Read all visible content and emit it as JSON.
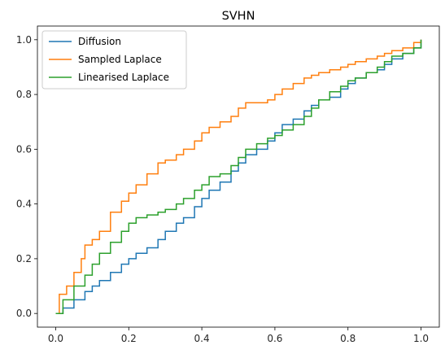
{
  "chart_data": {
    "type": "line",
    "title": "SVHN",
    "xlabel": "",
    "ylabel": "",
    "xlim": [
      -0.05,
      1.05
    ],
    "ylim": [
      -0.05,
      1.05
    ],
    "x_ticks": [
      "0.0",
      "0.2",
      "0.4",
      "0.6",
      "0.8",
      "1.0"
    ],
    "y_ticks": [
      "0.0",
      "0.2",
      "0.4",
      "0.6",
      "0.8",
      "1.0"
    ],
    "grid": false,
    "legend_position": "top-left",
    "series": [
      {
        "name": "Diffusion",
        "color": "#1f77b4",
        "step": true,
        "x": [
          0.0,
          0.02,
          0.05,
          0.08,
          0.1,
          0.12,
          0.15,
          0.18,
          0.2,
          0.22,
          0.25,
          0.28,
          0.3,
          0.33,
          0.35,
          0.38,
          0.4,
          0.42,
          0.45,
          0.48,
          0.5,
          0.52,
          0.55,
          0.58,
          0.6,
          0.62,
          0.65,
          0.68,
          0.7,
          0.72,
          0.75,
          0.78,
          0.8,
          0.82,
          0.85,
          0.88,
          0.9,
          0.92,
          0.95,
          0.98,
          1.0
        ],
        "y": [
          0.0,
          0.02,
          0.05,
          0.08,
          0.1,
          0.12,
          0.15,
          0.18,
          0.2,
          0.22,
          0.24,
          0.27,
          0.3,
          0.33,
          0.35,
          0.39,
          0.42,
          0.45,
          0.48,
          0.52,
          0.55,
          0.58,
          0.6,
          0.63,
          0.66,
          0.69,
          0.71,
          0.74,
          0.76,
          0.78,
          0.79,
          0.82,
          0.84,
          0.86,
          0.88,
          0.89,
          0.91,
          0.93,
          0.95,
          0.97,
          1.0
        ]
      },
      {
        "name": "Sampled Laplace",
        "color": "#ff7f0e",
        "step": true,
        "x": [
          0.0,
          0.01,
          0.03,
          0.05,
          0.07,
          0.08,
          0.1,
          0.12,
          0.15,
          0.18,
          0.2,
          0.22,
          0.25,
          0.28,
          0.3,
          0.33,
          0.35,
          0.38,
          0.4,
          0.42,
          0.45,
          0.48,
          0.5,
          0.52,
          0.55,
          0.58,
          0.6,
          0.62,
          0.65,
          0.68,
          0.7,
          0.72,
          0.75,
          0.78,
          0.8,
          0.82,
          0.85,
          0.88,
          0.9,
          0.92,
          0.95,
          0.98,
          1.0
        ],
        "y": [
          0.0,
          0.07,
          0.1,
          0.15,
          0.2,
          0.25,
          0.27,
          0.3,
          0.37,
          0.41,
          0.44,
          0.47,
          0.51,
          0.55,
          0.56,
          0.58,
          0.6,
          0.63,
          0.66,
          0.68,
          0.7,
          0.72,
          0.75,
          0.77,
          0.77,
          0.78,
          0.8,
          0.82,
          0.84,
          0.86,
          0.87,
          0.88,
          0.89,
          0.9,
          0.91,
          0.92,
          0.93,
          0.94,
          0.95,
          0.96,
          0.97,
          0.99,
          1.0
        ]
      },
      {
        "name": "Linearised Laplace",
        "color": "#2ca02c",
        "step": true,
        "x": [
          0.0,
          0.02,
          0.05,
          0.08,
          0.1,
          0.12,
          0.15,
          0.18,
          0.2,
          0.22,
          0.25,
          0.28,
          0.3,
          0.33,
          0.35,
          0.38,
          0.4,
          0.42,
          0.45,
          0.48,
          0.5,
          0.52,
          0.55,
          0.58,
          0.6,
          0.62,
          0.65,
          0.68,
          0.7,
          0.72,
          0.75,
          0.78,
          0.8,
          0.82,
          0.85,
          0.88,
          0.9,
          0.92,
          0.95,
          0.98,
          1.0
        ],
        "y": [
          0.0,
          0.05,
          0.1,
          0.14,
          0.18,
          0.22,
          0.26,
          0.3,
          0.33,
          0.35,
          0.36,
          0.37,
          0.38,
          0.4,
          0.42,
          0.45,
          0.47,
          0.5,
          0.51,
          0.54,
          0.57,
          0.6,
          0.62,
          0.64,
          0.65,
          0.67,
          0.69,
          0.72,
          0.75,
          0.78,
          0.81,
          0.83,
          0.85,
          0.86,
          0.88,
          0.9,
          0.92,
          0.94,
          0.95,
          0.97,
          1.0
        ]
      }
    ]
  }
}
